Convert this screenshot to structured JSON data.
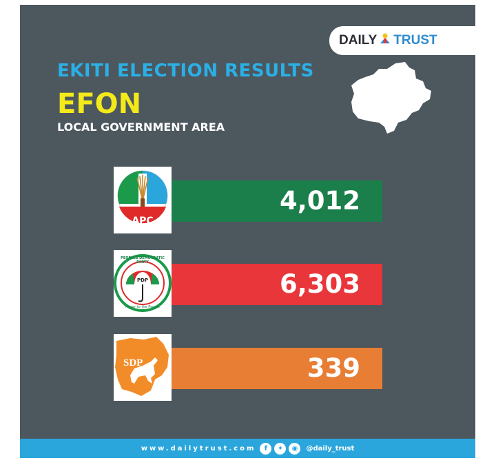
{
  "brand": {
    "daily": "DAILY",
    "trust": "TRUST"
  },
  "header": {
    "title": "EKITI ELECTION RESULTS",
    "lga": "EFON",
    "subtitle": "LOCAL GOVERNMENT AREA"
  },
  "results": [
    {
      "party": "APC",
      "votes": "4,012",
      "color": "#1a7f4a"
    },
    {
      "party": "PDP",
      "votes": "6,303",
      "color": "#e8363a"
    },
    {
      "party": "SDP",
      "votes": "339",
      "color": "#e87d34"
    }
  ],
  "logos": {
    "pdp_ring_top": "PEOPLES DEMOCRATIC PARTY",
    "pdp_ring_bottom": "Power to the People"
  },
  "footer": {
    "website": "www.dailytrust.com",
    "icons": [
      "facebook-icon",
      "twitter-icon",
      "instagram-icon"
    ],
    "handle": "@daily_trust"
  },
  "colors": {
    "background": "#4d575e",
    "headline": "#2bb0e6",
    "lga": "#f4ea1a",
    "footer": "#2aa6dc"
  }
}
